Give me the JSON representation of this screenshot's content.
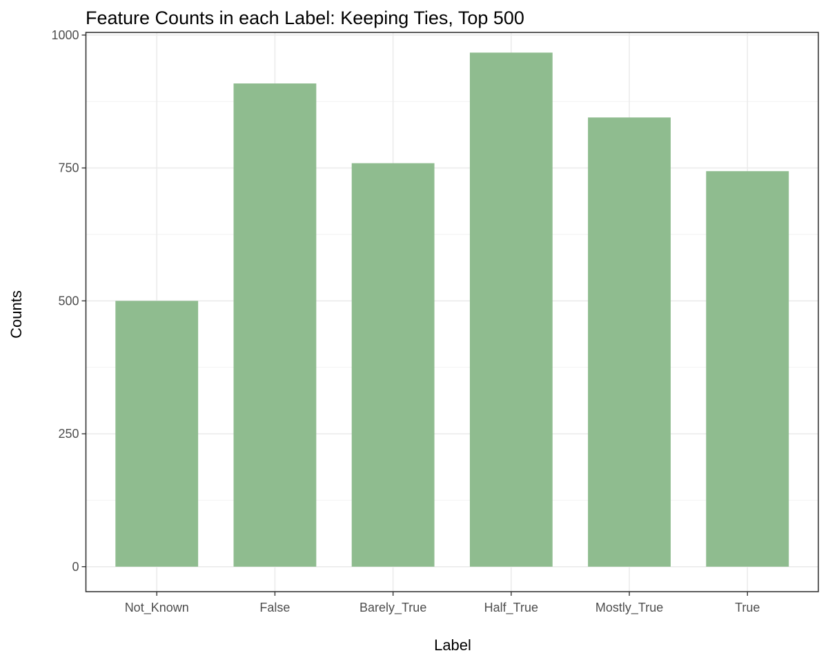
{
  "chart_data": {
    "type": "bar",
    "title": "Feature Counts in each Label: Keeping Ties, Top 500",
    "xlabel": "Label",
    "ylabel": "Counts",
    "categories": [
      "Not_Known",
      "False",
      "Barely_True",
      "Half_True",
      "Mostly_True",
      "True"
    ],
    "values": [
      500,
      909,
      759,
      967,
      845,
      744
    ],
    "ylim": [
      -47,
      1005
    ],
    "yticks": [
      0,
      250,
      500,
      750,
      1000
    ],
    "ytick_labels": [
      "0",
      "250",
      "500",
      "750",
      "1000"
    ],
    "bar_color": "#8fbc8f",
    "grid": true,
    "legend": "none"
  }
}
